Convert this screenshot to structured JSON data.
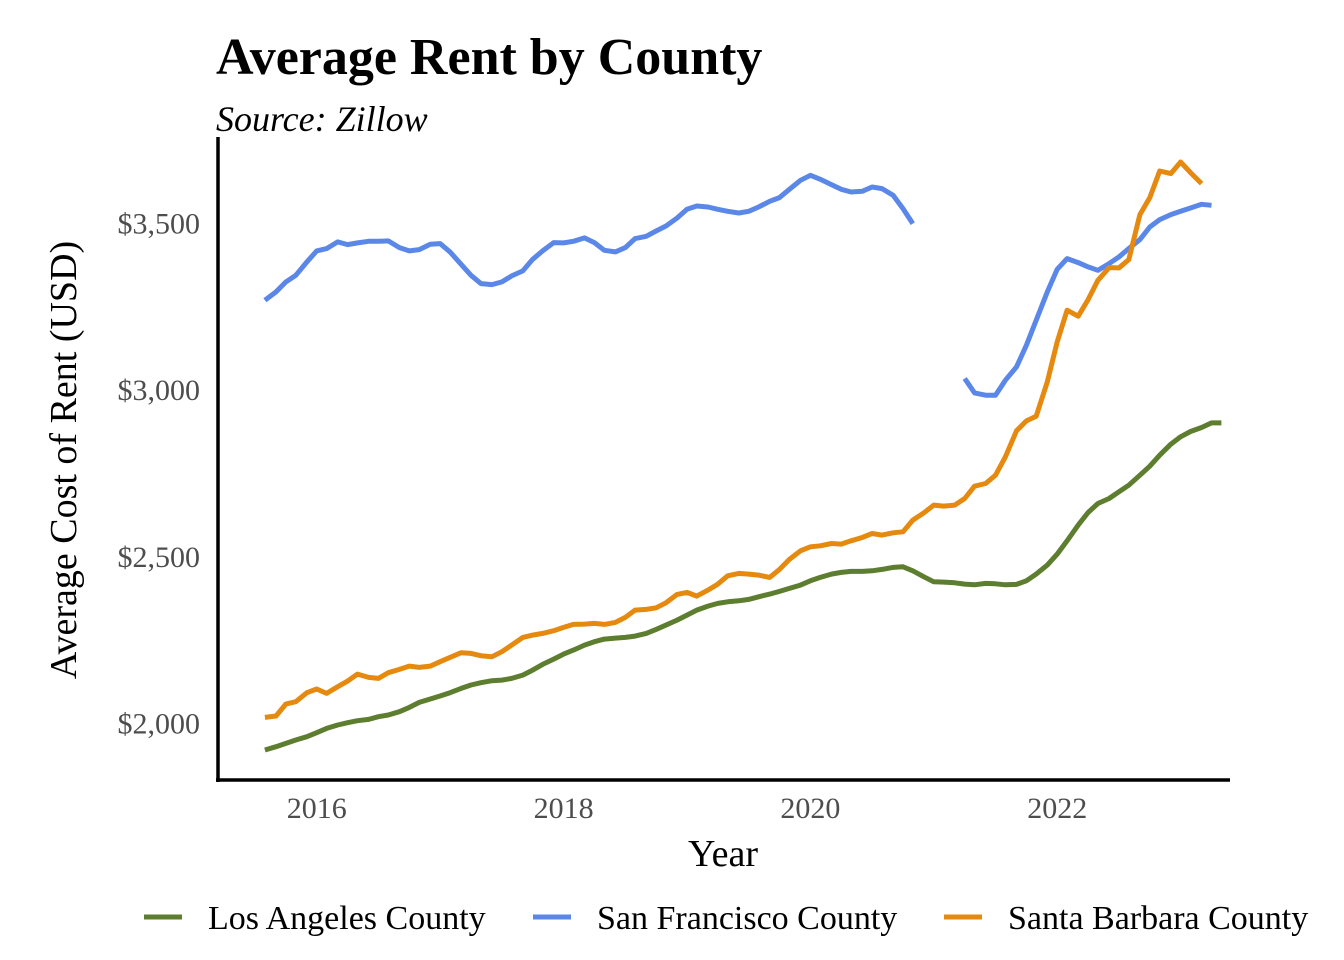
{
  "chart_data": {
    "type": "line",
    "title": "Average Rent by County",
    "subtitle": "Source: Zillow",
    "xlabel": "Year",
    "ylabel": "Average Cost of Rent (USD)",
    "xlim": [
      2015.2,
      2023.4
    ],
    "ylim": [
      1830,
      3760
    ],
    "x_ticks": [
      2016,
      2018,
      2020,
      2022
    ],
    "x_tick_labels": [
      "2016",
      "2018",
      "2020",
      "2022"
    ],
    "y_ticks": [
      2000,
      2500,
      3000,
      3500
    ],
    "y_tick_labels": [
      "$2,000",
      "$2,500",
      "$3,000",
      "$3,500"
    ],
    "grid": false,
    "legend_position": "bottom",
    "series": [
      {
        "name": "Los Angeles County",
        "color": "#5d7d2f",
        "points": [
          [
            2015.58,
            1920
          ],
          [
            2015.67,
            1930
          ],
          [
            2015.75,
            1940
          ],
          [
            2015.83,
            1950
          ],
          [
            2015.92,
            1960
          ],
          [
            2016.0,
            1972
          ],
          [
            2016.08,
            1985
          ],
          [
            2016.17,
            1995
          ],
          [
            2016.25,
            2002
          ],
          [
            2016.33,
            2008
          ],
          [
            2016.42,
            2012
          ],
          [
            2016.5,
            2020
          ],
          [
            2016.58,
            2025
          ],
          [
            2016.67,
            2035
          ],
          [
            2016.75,
            2048
          ],
          [
            2016.83,
            2063
          ],
          [
            2016.92,
            2073
          ],
          [
            2017.0,
            2082
          ],
          [
            2017.08,
            2092
          ],
          [
            2017.17,
            2105
          ],
          [
            2017.25,
            2115
          ],
          [
            2017.33,
            2122
          ],
          [
            2017.42,
            2128
          ],
          [
            2017.5,
            2130
          ],
          [
            2017.58,
            2135
          ],
          [
            2017.67,
            2145
          ],
          [
            2017.75,
            2160
          ],
          [
            2017.83,
            2177
          ],
          [
            2017.92,
            2193
          ],
          [
            2018.0,
            2208
          ],
          [
            2018.08,
            2220
          ],
          [
            2018.17,
            2235
          ],
          [
            2018.25,
            2245
          ],
          [
            2018.33,
            2253
          ],
          [
            2018.42,
            2256
          ],
          [
            2018.5,
            2258
          ],
          [
            2018.58,
            2262
          ],
          [
            2018.67,
            2270
          ],
          [
            2018.75,
            2282
          ],
          [
            2018.83,
            2295
          ],
          [
            2018.92,
            2310
          ],
          [
            2019.0,
            2325
          ],
          [
            2019.08,
            2340
          ],
          [
            2019.17,
            2352
          ],
          [
            2019.25,
            2360
          ],
          [
            2019.33,
            2365
          ],
          [
            2019.42,
            2368
          ],
          [
            2019.5,
            2372
          ],
          [
            2019.58,
            2380
          ],
          [
            2019.67,
            2388
          ],
          [
            2019.75,
            2396
          ],
          [
            2019.83,
            2405
          ],
          [
            2019.92,
            2415
          ],
          [
            2020.0,
            2428
          ],
          [
            2020.08,
            2438
          ],
          [
            2020.17,
            2448
          ],
          [
            2020.25,
            2453
          ],
          [
            2020.33,
            2456
          ],
          [
            2020.42,
            2456
          ],
          [
            2020.5,
            2458
          ],
          [
            2020.58,
            2462
          ],
          [
            2020.67,
            2468
          ],
          [
            2020.75,
            2470
          ],
          [
            2020.83,
            2458
          ],
          [
            2020.92,
            2440
          ],
          [
            2021.0,
            2425
          ],
          [
            2021.08,
            2424
          ],
          [
            2021.17,
            2422
          ],
          [
            2021.25,
            2418
          ],
          [
            2021.33,
            2416
          ],
          [
            2021.42,
            2420
          ],
          [
            2021.5,
            2419
          ],
          [
            2021.58,
            2416
          ],
          [
            2021.67,
            2417
          ],
          [
            2021.75,
            2428
          ],
          [
            2021.83,
            2448
          ],
          [
            2021.92,
            2475
          ],
          [
            2022.0,
            2508
          ],
          [
            2022.08,
            2548
          ],
          [
            2022.17,
            2595
          ],
          [
            2022.25,
            2633
          ],
          [
            2022.33,
            2660
          ],
          [
            2022.42,
            2675
          ],
          [
            2022.5,
            2695
          ],
          [
            2022.58,
            2715
          ],
          [
            2022.67,
            2745
          ],
          [
            2022.75,
            2772
          ],
          [
            2022.83,
            2805
          ],
          [
            2022.92,
            2838
          ],
          [
            2023.0,
            2860
          ],
          [
            2023.08,
            2876
          ],
          [
            2023.17,
            2888
          ],
          [
            2023.25,
            2902
          ],
          [
            2023.33,
            2902
          ]
        ]
      },
      {
        "name": "San Francisco County",
        "color": "#5b87e8",
        "points": [
          [
            2015.58,
            3270
          ],
          [
            2015.67,
            3295
          ],
          [
            2015.75,
            3325
          ],
          [
            2015.83,
            3345
          ],
          [
            2015.92,
            3385
          ],
          [
            2016.0,
            3418
          ],
          [
            2016.08,
            3425
          ],
          [
            2016.17,
            3445
          ],
          [
            2016.25,
            3437
          ],
          [
            2016.33,
            3442
          ],
          [
            2016.42,
            3447
          ],
          [
            2016.5,
            3447
          ],
          [
            2016.58,
            3448
          ],
          [
            2016.67,
            3428
          ],
          [
            2016.75,
            3418
          ],
          [
            2016.83,
            3422
          ],
          [
            2016.92,
            3438
          ],
          [
            2017.0,
            3440
          ],
          [
            2017.08,
            3415
          ],
          [
            2017.17,
            3378
          ],
          [
            2017.25,
            3345
          ],
          [
            2017.33,
            3320
          ],
          [
            2017.42,
            3317
          ],
          [
            2017.5,
            3325
          ],
          [
            2017.58,
            3343
          ],
          [
            2017.67,
            3358
          ],
          [
            2017.75,
            3393
          ],
          [
            2017.83,
            3418
          ],
          [
            2017.92,
            3443
          ],
          [
            2018.0,
            3442
          ],
          [
            2018.08,
            3447
          ],
          [
            2018.17,
            3457
          ],
          [
            2018.25,
            3443
          ],
          [
            2018.33,
            3420
          ],
          [
            2018.42,
            3415
          ],
          [
            2018.5,
            3428
          ],
          [
            2018.58,
            3455
          ],
          [
            2018.67,
            3462
          ],
          [
            2018.75,
            3478
          ],
          [
            2018.83,
            3493
          ],
          [
            2018.92,
            3517
          ],
          [
            2019.0,
            3543
          ],
          [
            2019.08,
            3553
          ],
          [
            2019.17,
            3550
          ],
          [
            2019.25,
            3543
          ],
          [
            2019.33,
            3537
          ],
          [
            2019.42,
            3532
          ],
          [
            2019.5,
            3537
          ],
          [
            2019.58,
            3550
          ],
          [
            2019.67,
            3567
          ],
          [
            2019.75,
            3578
          ],
          [
            2019.83,
            3603
          ],
          [
            2019.92,
            3630
          ],
          [
            2020.0,
            3645
          ],
          [
            2020.08,
            3633
          ],
          [
            2020.17,
            3617
          ],
          [
            2020.25,
            3603
          ],
          [
            2020.33,
            3595
          ],
          [
            2020.42,
            3597
          ],
          [
            2020.5,
            3610
          ],
          [
            2020.58,
            3605
          ],
          [
            2020.67,
            3585
          ],
          [
            2020.75,
            3545
          ],
          [
            2020.83,
            3500
          ],
          null,
          [
            2021.25,
            3035
          ],
          [
            2021.33,
            2992
          ],
          [
            2021.42,
            2985
          ],
          [
            2021.5,
            2985
          ],
          [
            2021.58,
            3030
          ],
          [
            2021.67,
            3070
          ],
          [
            2021.75,
            3135
          ],
          [
            2021.83,
            3210
          ],
          [
            2021.92,
            3295
          ],
          [
            2022.0,
            3363
          ],
          [
            2022.08,
            3395
          ],
          [
            2022.17,
            3383
          ],
          [
            2022.25,
            3370
          ],
          [
            2022.33,
            3360
          ],
          [
            2022.42,
            3380
          ],
          [
            2022.5,
            3400
          ],
          [
            2022.58,
            3425
          ],
          [
            2022.67,
            3452
          ],
          [
            2022.75,
            3490
          ],
          [
            2022.83,
            3512
          ],
          [
            2022.92,
            3527
          ],
          [
            2023.0,
            3537
          ],
          [
            2023.08,
            3547
          ],
          [
            2023.17,
            3558
          ],
          [
            2023.25,
            3555
          ]
        ]
      },
      {
        "name": "Santa Barbara County",
        "color": "#e6890f",
        "points": [
          [
            2015.58,
            2018
          ],
          [
            2015.67,
            2022
          ],
          [
            2015.75,
            2058
          ],
          [
            2015.83,
            2065
          ],
          [
            2015.92,
            2092
          ],
          [
            2016.0,
            2103
          ],
          [
            2016.08,
            2090
          ],
          [
            2016.17,
            2110
          ],
          [
            2016.25,
            2127
          ],
          [
            2016.33,
            2148
          ],
          [
            2016.42,
            2138
          ],
          [
            2016.5,
            2135
          ],
          [
            2016.58,
            2152
          ],
          [
            2016.67,
            2162
          ],
          [
            2016.75,
            2172
          ],
          [
            2016.83,
            2168
          ],
          [
            2016.92,
            2172
          ],
          [
            2017.0,
            2185
          ],
          [
            2017.08,
            2198
          ],
          [
            2017.17,
            2212
          ],
          [
            2017.25,
            2210
          ],
          [
            2017.33,
            2203
          ],
          [
            2017.42,
            2200
          ],
          [
            2017.5,
            2215
          ],
          [
            2017.58,
            2235
          ],
          [
            2017.67,
            2258
          ],
          [
            2017.75,
            2265
          ],
          [
            2017.83,
            2270
          ],
          [
            2017.92,
            2278
          ],
          [
            2018.0,
            2288
          ],
          [
            2018.08,
            2297
          ],
          [
            2018.17,
            2298
          ],
          [
            2018.25,
            2300
          ],
          [
            2018.33,
            2297
          ],
          [
            2018.42,
            2303
          ],
          [
            2018.5,
            2318
          ],
          [
            2018.58,
            2340
          ],
          [
            2018.67,
            2342
          ],
          [
            2018.75,
            2347
          ],
          [
            2018.83,
            2362
          ],
          [
            2018.92,
            2387
          ],
          [
            2019.0,
            2393
          ],
          [
            2019.08,
            2382
          ],
          [
            2019.17,
            2400
          ],
          [
            2019.25,
            2418
          ],
          [
            2019.33,
            2443
          ],
          [
            2019.42,
            2450
          ],
          [
            2019.5,
            2448
          ],
          [
            2019.58,
            2445
          ],
          [
            2019.67,
            2438
          ],
          [
            2019.75,
            2462
          ],
          [
            2019.83,
            2492
          ],
          [
            2019.92,
            2518
          ],
          [
            2020.0,
            2530
          ],
          [
            2020.08,
            2533
          ],
          [
            2020.17,
            2540
          ],
          [
            2020.25,
            2538
          ],
          [
            2020.33,
            2548
          ],
          [
            2020.42,
            2558
          ],
          [
            2020.5,
            2570
          ],
          [
            2020.58,
            2565
          ],
          [
            2020.67,
            2572
          ],
          [
            2020.75,
            2575
          ],
          [
            2020.83,
            2610
          ],
          [
            2020.92,
            2632
          ],
          [
            2021.0,
            2655
          ],
          [
            2021.08,
            2652
          ],
          [
            2021.17,
            2655
          ],
          [
            2021.25,
            2675
          ],
          [
            2021.33,
            2712
          ],
          [
            2021.42,
            2720
          ],
          [
            2021.5,
            2745
          ],
          [
            2021.58,
            2800
          ],
          [
            2021.67,
            2878
          ],
          [
            2021.75,
            2908
          ],
          [
            2021.83,
            2922
          ],
          [
            2021.92,
            3025
          ],
          [
            2022.0,
            3145
          ],
          [
            2022.08,
            3240
          ],
          [
            2022.17,
            3222
          ],
          [
            2022.25,
            3272
          ],
          [
            2022.33,
            3330
          ],
          [
            2022.42,
            3368
          ],
          [
            2022.5,
            3367
          ],
          [
            2022.58,
            3392
          ],
          [
            2022.67,
            3527
          ],
          [
            2022.75,
            3578
          ],
          [
            2022.83,
            3658
          ],
          [
            2022.92,
            3650
          ],
          [
            2023.0,
            3685
          ],
          [
            2023.08,
            3653
          ],
          [
            2023.17,
            3620
          ]
        ]
      }
    ]
  }
}
